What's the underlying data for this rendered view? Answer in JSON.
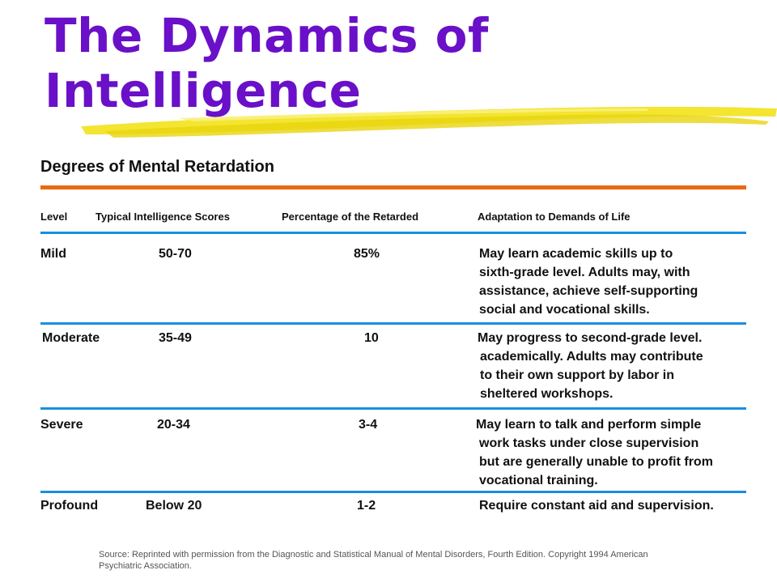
{
  "title_lines": [
    "The Dynamics of",
    "Intelligence"
  ],
  "subtitle": "Degrees of Mental Retardation",
  "columns": {
    "level": "Level",
    "scores": "Typical Intelligence  Scores",
    "percentage": "Percentage of the Retarded",
    "adaptation": "Adaptation to Demands of Life"
  },
  "rows": [
    {
      "level": "Mild",
      "scores": "50-70",
      "percentage": "85%",
      "adaptation": [
        "May learn academic skills up to",
        "sixth-grade level. Adults may, with",
        "assistance, achieve self-supporting",
        "social and vocational skills."
      ]
    },
    {
      "level": "Moderate",
      "scores": "35-49",
      "percentage": "10",
      "adaptation": [
        "May progress to second-grade level.",
        "academically. Adults may contribute",
        "to their own support by labor in",
        "sheltered workshops."
      ]
    },
    {
      "level": "Severe",
      "scores": "20-34",
      "percentage": "3-4",
      "adaptation": [
        "May learn to talk and perform simple",
        "work tasks under close supervision",
        "but are generally unable to profit from",
        "vocational training."
      ]
    },
    {
      "level": "Profound",
      "scores": "Below 20",
      "percentage": "1-2",
      "adaptation": [
        "Require constant aid and supervision."
      ]
    }
  ],
  "source_lines": [
    "Source: Reprinted with permission from the Diagnostic and Statistical Manual of Mental Disorders, Fourth Edition. Copyright 1994 American",
    "Psychiatric Association."
  ],
  "colors": {
    "title": "#6a10c8",
    "highlight": "#f2e21a",
    "orange_rule": "#ea6a13",
    "blue_rule": "#1a8fdc"
  }
}
